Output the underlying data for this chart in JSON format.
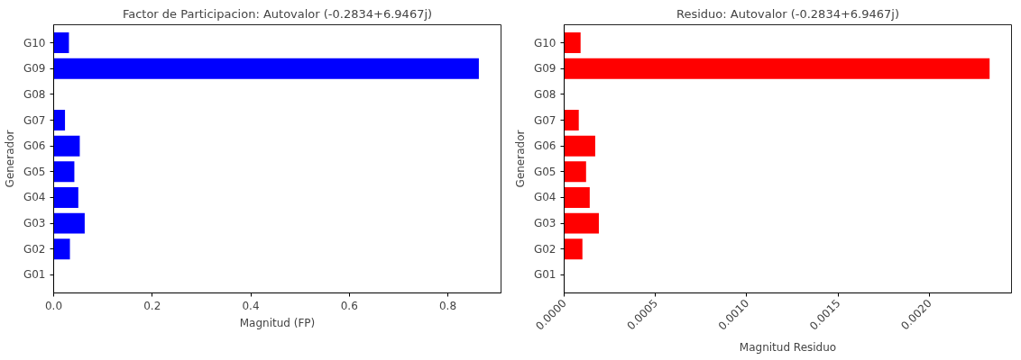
{
  "chart_data": [
    {
      "type": "bar",
      "orientation": "horizontal",
      "title": "Factor de Participacion: Autovalor (-0.2834+6.9467j)",
      "xlabel": "Magnitud (FP)",
      "ylabel": "Generador",
      "color": "#0000ff",
      "categories": [
        "G10",
        "G09",
        "G08",
        "G07",
        "G06",
        "G05",
        "G04",
        "G03",
        "G02",
        "G01"
      ],
      "values": [
        0.031,
        0.863,
        0,
        0.023,
        0.053,
        0.042,
        0.05,
        0.063,
        0.033,
        0
      ],
      "xlim": [
        0,
        0.908
      ],
      "xticks": [
        {
          "value": 0,
          "label": "0.0"
        },
        0.2,
        0.4,
        0.6,
        0.8
      ]
    },
    {
      "type": "bar",
      "orientation": "horizontal",
      "title": "Residuo: Autovalor (-0.2834+6.9467j)",
      "xlabel": "Magnitud Residuo",
      "ylabel": "Generador",
      "color": "#ff0000",
      "categories": [
        "G10",
        "G09",
        "G08",
        "G07",
        "G06",
        "G05",
        "G04",
        "G03",
        "G02",
        "G01"
      ],
      "values": [
        9e-05,
        0.00233,
        0,
        8e-05,
        0.00017,
        0.00012,
        0.00014,
        0.00019,
        0.0001,
        0
      ],
      "xlim": [
        0,
        0.00245
      ],
      "xticks": [
        {
          "value": 0,
          "label": "0.0000"
        },
        {
          "value": 0.0005,
          "label": "0.0005"
        },
        {
          "value": 0.001,
          "label": "0.0010"
        },
        {
          "value": 0.0015,
          "label": "0.0015"
        },
        {
          "value": 0.002,
          "label": "0.0020"
        }
      ]
    }
  ]
}
